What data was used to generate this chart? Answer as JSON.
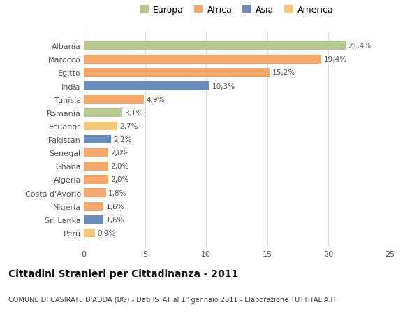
{
  "categories": [
    "Perù",
    "Sri Lanka",
    "Nigeria",
    "Costa d'Avorio",
    "Algeria",
    "Ghana",
    "Senegal",
    "Pakistan",
    "Ecuador",
    "Romania",
    "Tunisia",
    "India",
    "Egitto",
    "Marocco",
    "Albania"
  ],
  "values": [
    0.9,
    1.6,
    1.6,
    1.8,
    2.0,
    2.0,
    2.0,
    2.2,
    2.7,
    3.1,
    4.9,
    10.3,
    15.2,
    19.4,
    21.4
  ],
  "labels": [
    "0,9%",
    "1,6%",
    "1,6%",
    "1,8%",
    "2,0%",
    "2,0%",
    "2,0%",
    "2,2%",
    "2,7%",
    "3,1%",
    "4,9%",
    "10,3%",
    "15,2%",
    "19,4%",
    "21,4%"
  ],
  "colors": [
    "#f5c97a",
    "#6b8cba",
    "#f5a86b",
    "#f5a86b",
    "#f5a86b",
    "#f5a86b",
    "#f5a86b",
    "#6b8cba",
    "#f5c97a",
    "#b5c98e",
    "#f5a86b",
    "#6b8cba",
    "#f5a86b",
    "#f5a86b",
    "#b5c98e"
  ],
  "legend_labels": [
    "Europa",
    "Africa",
    "Asia",
    "America"
  ],
  "legend_colors": [
    "#b5c98e",
    "#f5a86b",
    "#6b8cba",
    "#f5c97a"
  ],
  "title": "Cittadini Stranieri per Cittadinanza - 2011",
  "subtitle": "COMUNE DI CASIRATE D'ADDA (BG) - Dati ISTAT al 1° gennaio 2011 - Elaborazione TUTTITALIA.IT",
  "xlim": [
    0,
    25
  ],
  "xticks": [
    0,
    5,
    10,
    15,
    20,
    25
  ],
  "background_color": "#ffffff",
  "bar_height": 0.65,
  "grid_color": "#dddddd"
}
